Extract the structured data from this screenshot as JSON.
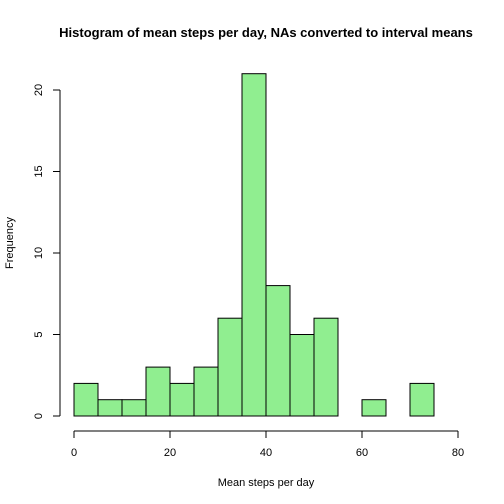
{
  "chart_data": {
    "type": "bar",
    "title": "Histogram of mean steps per day, NAs converted to interval means",
    "xlabel": "Mean steps per day",
    "ylabel": "Frequency",
    "bins": [
      {
        "start": 0,
        "end": 5,
        "count": 2
      },
      {
        "start": 5,
        "end": 10,
        "count": 1
      },
      {
        "start": 10,
        "end": 15,
        "count": 1
      },
      {
        "start": 15,
        "end": 20,
        "count": 3
      },
      {
        "start": 20,
        "end": 25,
        "count": 2
      },
      {
        "start": 25,
        "end": 30,
        "count": 3
      },
      {
        "start": 30,
        "end": 35,
        "count": 6
      },
      {
        "start": 35,
        "end": 40,
        "count": 21
      },
      {
        "start": 40,
        "end": 45,
        "count": 8
      },
      {
        "start": 45,
        "end": 50,
        "count": 5
      },
      {
        "start": 50,
        "end": 55,
        "count": 6
      },
      {
        "start": 55,
        "end": 60,
        "count": 0
      },
      {
        "start": 60,
        "end": 65,
        "count": 1
      },
      {
        "start": 65,
        "end": 70,
        "count": 0
      },
      {
        "start": 70,
        "end": 75,
        "count": 2
      }
    ],
    "xlim": [
      0,
      80
    ],
    "ylim": [
      0,
      21
    ],
    "xticks": [
      0,
      20,
      40,
      60,
      80
    ],
    "yticks": [
      0,
      5,
      10,
      15,
      20
    ],
    "bar_color": "#90EE90",
    "grid": false,
    "legend": "none"
  }
}
